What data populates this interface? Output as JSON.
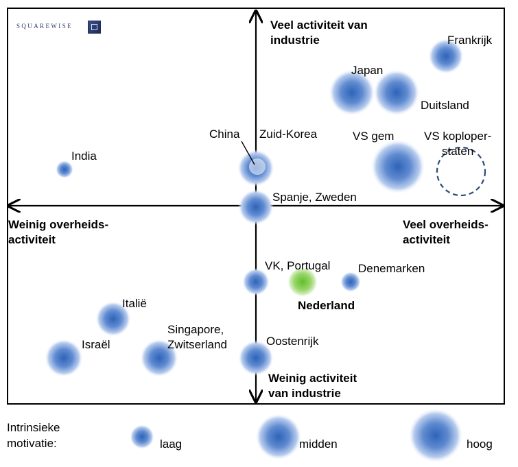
{
  "brand": {
    "logo_text": "SQUAREWISE"
  },
  "axes": {
    "top": [
      "Veel activiteit van",
      "industrie"
    ],
    "bottom": [
      "Weinig activiteit",
      "van industrie"
    ],
    "left": [
      "Weinig overheids-",
      "activiteit"
    ],
    "right": [
      "Veel overheids-",
      "activiteit"
    ]
  },
  "countries": {
    "frankrijk": "Frankrijk",
    "japan": "Japan",
    "duitsland": "Duitsland",
    "china": "China",
    "zuid_korea": "Zuid-Korea",
    "vs_gem": "VS gem",
    "vs_koplopers": [
      "VS koploper-",
      "staten"
    ],
    "india": "India",
    "spanje_zweden": "Spanje, Zweden",
    "vk_portugal": "VK, Portugal",
    "denemarken": "Denemarken",
    "nederland": "Nederland",
    "italie": "Italië",
    "israel": "Israël",
    "singapore": [
      "Singapore,",
      "Zwitserland"
    ],
    "oostenrijk": "Oostenrijk"
  },
  "legend": {
    "title": [
      "Intrinsieke",
      "motivatie:"
    ],
    "low": "laag",
    "mid": "midden",
    "high": "hoog"
  },
  "colors": {
    "bubble": "#3f6fbf",
    "highlight": "#7ac943",
    "dashed": "#2c4a7a"
  }
}
